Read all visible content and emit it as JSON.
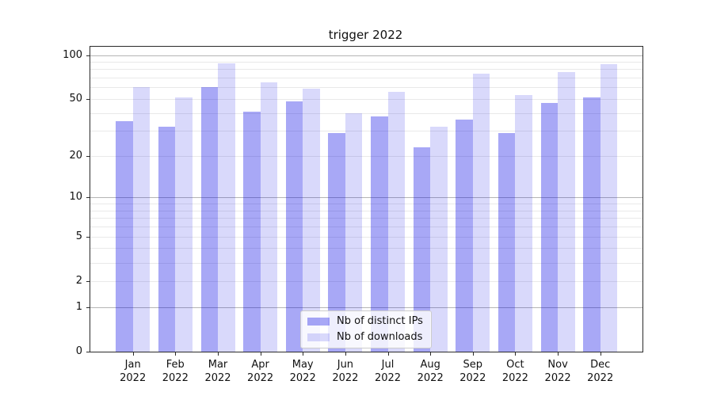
{
  "title": "trigger 2022",
  "legend": {
    "position": "lower center",
    "items": [
      {
        "label": "Nb of distinct IPs",
        "color": "#0000E657"
      },
      {
        "label": "Nb of downloads",
        "color": "#0000E626"
      }
    ]
  },
  "axes": {
    "ytick_labels": [
      "100",
      "50",
      "20",
      "10",
      "5",
      "2",
      "1",
      "0"
    ],
    "grid_major_color": "#b5b5b5",
    "grid_minor_color": "#e9e9e9",
    "spine_color": "#2a2a2a"
  },
  "chart_data": {
    "type": "bar",
    "title": "trigger 2022",
    "xlabel": "",
    "ylabel": "",
    "scale": "log1p",
    "categories": [
      "Jan 2022",
      "Feb 2022",
      "Mar 2022",
      "Apr 2022",
      "May 2022",
      "Jun 2022",
      "Jul 2022",
      "Aug 2022",
      "Sep 2022",
      "Oct 2022",
      "Nov 2022",
      "Dec 2022"
    ],
    "series": [
      {
        "name": "Nb of distinct IPs",
        "color": "#0000E657",
        "values": [
          35,
          32,
          60,
          41,
          48,
          29,
          38,
          23,
          36,
          29,
          47,
          51
        ]
      },
      {
        "name": "Nb of downloads",
        "color": "#0000E626",
        "values": [
          60,
          51,
          88,
          65,
          59,
          40,
          56,
          32,
          75,
          53,
          77,
          87
        ]
      }
    ],
    "yticks": [
      100,
      50,
      20,
      10,
      5,
      2,
      1,
      0
    ],
    "ylim": [
      0,
      114
    ],
    "grid": true,
    "legend_position": "lower center"
  }
}
